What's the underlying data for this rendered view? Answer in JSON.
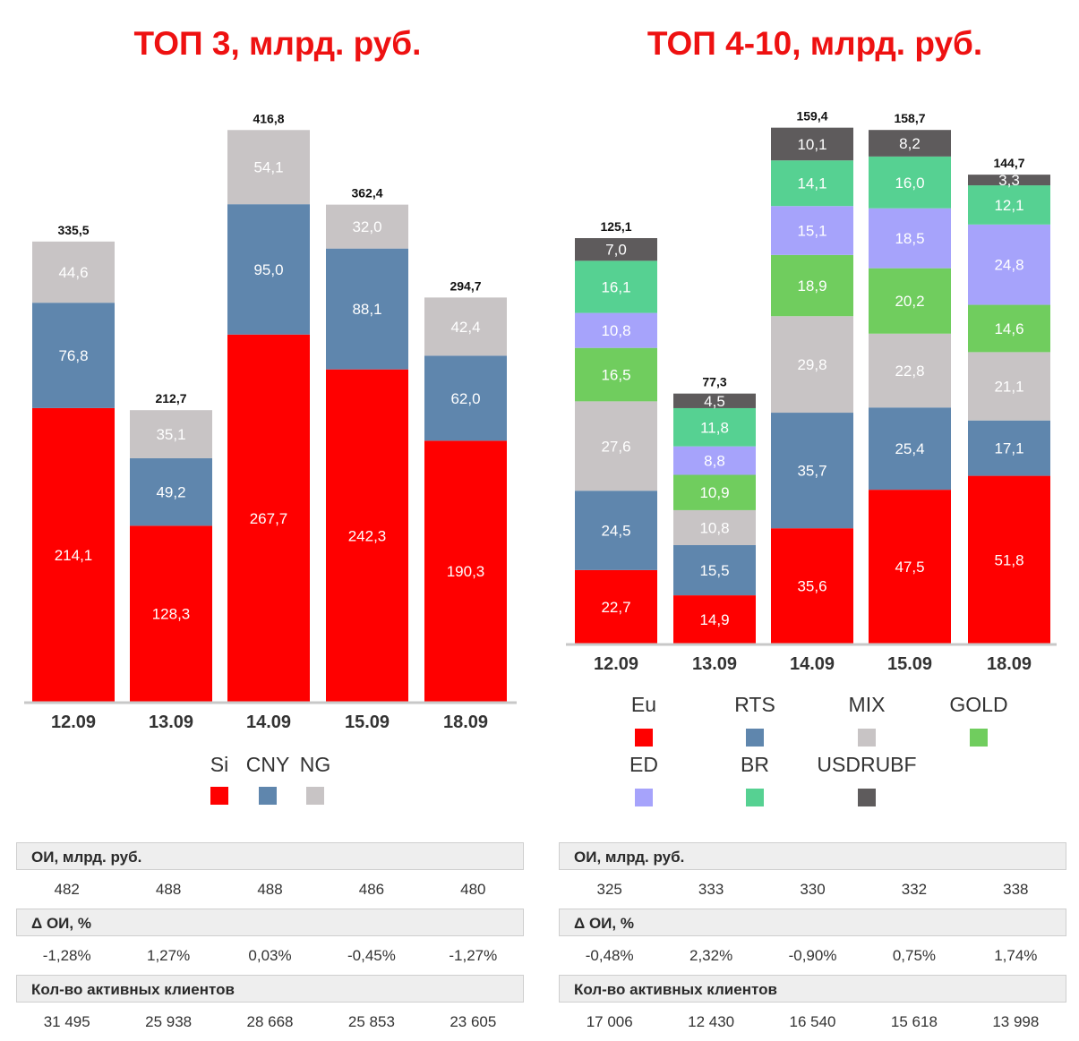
{
  "colors": {
    "Si": "#ff0000",
    "CNY": "#5f86ad",
    "NG": "#c8c4c5",
    "Eu": "#ff0000",
    "RTS": "#5f86ad",
    "MIX": "#c8c4c5",
    "GOLD": "#70cd5e",
    "ED": "#a6a3fb",
    "BR": "#56d192",
    "USDRUBF": "#5e5b5c"
  },
  "chart_data": [
    {
      "type": "bar",
      "stacked": true,
      "title": "ТОП 3, млрд. руб.",
      "categories": [
        "12.09",
        "13.09",
        "14.09",
        "15.09",
        "18.09"
      ],
      "series": [
        {
          "name": "Si",
          "values": [
            214.1,
            128.3,
            267.7,
            242.3,
            190.3
          ],
          "labels": [
            "214,1",
            "128,3",
            "267,7",
            "242,3",
            "190,3"
          ]
        },
        {
          "name": "CNY",
          "values": [
            76.8,
            49.2,
            95.0,
            88.1,
            62.0
          ],
          "labels": [
            "76,8",
            "49,2",
            "95,0",
            "88,1",
            "62,0"
          ]
        },
        {
          "name": "NG",
          "values": [
            44.6,
            35.1,
            54.1,
            32.0,
            42.4
          ],
          "labels": [
            "44,6",
            "35,1",
            "54,1",
            "32,0",
            "42,4"
          ]
        }
      ],
      "totals": [
        335.5,
        212.7,
        416.8,
        362.4,
        294.7
      ],
      "total_labels": [
        "335,5",
        "212,7",
        "416,8",
        "362,4",
        "294,7"
      ],
      "legend": [
        "Si",
        "CNY",
        "NG"
      ],
      "legend_position": "bottom"
    },
    {
      "type": "bar",
      "stacked": true,
      "title": "ТОП 4-10, млрд. руб.",
      "categories": [
        "12.09",
        "13.09",
        "14.09",
        "15.09",
        "18.09"
      ],
      "series": [
        {
          "name": "Eu",
          "values": [
            22.7,
            14.9,
            35.6,
            47.5,
            51.8
          ],
          "labels": [
            "22,7",
            "14,9",
            "35,6",
            "47,5",
            "51,8"
          ]
        },
        {
          "name": "RTS",
          "values": [
            24.5,
            15.5,
            35.7,
            25.4,
            17.1
          ],
          "labels": [
            "24,5",
            "15,5",
            "35,7",
            "25,4",
            "17,1"
          ]
        },
        {
          "name": "MIX",
          "values": [
            27.6,
            10.8,
            29.8,
            22.8,
            21.1
          ],
          "labels": [
            "27,6",
            "10,8",
            "29,8",
            "22,8",
            "21,1"
          ]
        },
        {
          "name": "GOLD",
          "values": [
            16.5,
            10.9,
            18.9,
            20.2,
            14.6
          ],
          "labels": [
            "16,5",
            "10,9",
            "18,9",
            "20,2",
            "14,6"
          ]
        },
        {
          "name": "ED",
          "values": [
            10.8,
            8.8,
            15.1,
            18.5,
            24.8
          ],
          "labels": [
            "10,8",
            "8,8",
            "15,1",
            "18,5",
            "24,8"
          ]
        },
        {
          "name": "BR",
          "values": [
            16.1,
            11.8,
            14.1,
            16.0,
            12.1
          ],
          "labels": [
            "16,1",
            "11,8",
            "14,1",
            "16,0",
            "12,1"
          ]
        },
        {
          "name": "USDRUBF",
          "values": [
            7.0,
            4.5,
            10.1,
            8.2,
            3.3
          ],
          "labels": [
            "7,0",
            "4,5",
            "10,1",
            "8,2",
            "3,3"
          ]
        }
      ],
      "totals": [
        125.1,
        77.3,
        159.4,
        158.7,
        144.7
      ],
      "total_labels": [
        "125,1",
        "77,3",
        "159,4",
        "158,7",
        "144,7"
      ],
      "legend": [
        "Eu",
        "RTS",
        "MIX",
        "GOLD",
        "ED",
        "BR",
        "USDRUBF"
      ],
      "legend_position": "bottom"
    }
  ],
  "tables": {
    "left": {
      "oi_label": "ОИ, млрд. руб.",
      "oi_values": [
        "482",
        "488",
        "488",
        "486",
        "480"
      ],
      "delta_label": "Δ ОИ, %",
      "delta_values": [
        "-1,28%",
        "1,27%",
        "0,03%",
        "-0,45%",
        "-1,27%"
      ],
      "clients_label": "Кол-во активных клиентов",
      "clients_values": [
        "31 495",
        "25 938",
        "28 668",
        "25 853",
        "23 605"
      ]
    },
    "right": {
      "oi_label": "ОИ, млрд. руб.",
      "oi_values": [
        "325",
        "333",
        "330",
        "332",
        "338"
      ],
      "delta_label": "Δ ОИ, %",
      "delta_values": [
        "-0,48%",
        "2,32%",
        "-0,90%",
        "0,75%",
        "1,74%"
      ],
      "clients_label": "Кол-во активных клиентов",
      "clients_values": [
        "17 006",
        "12 430",
        "16 540",
        "15 618",
        "13 998"
      ]
    }
  }
}
